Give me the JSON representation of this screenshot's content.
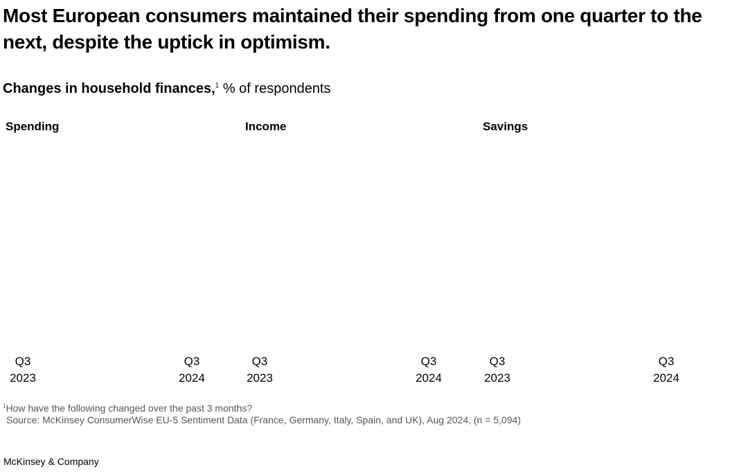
{
  "title": "Most European consumers maintained their spending from one quarter to the next, despite the uptick in optimism.",
  "subtitle": {
    "bold": "Changes in household finances,",
    "footnote_mark": "1",
    "rest": " % of respondents"
  },
  "chart_data": [
    {
      "type": "bar",
      "title": "Spending",
      "categories": [
        "Q3 2023",
        "Q3 2024"
      ],
      "tick_labels": [
        [
          "Q3",
          "2023"
        ],
        [
          "Q3",
          "2024"
        ]
      ],
      "series": []
    },
    {
      "type": "bar",
      "title": "Income",
      "categories": [
        "Q3 2023",
        "Q3 2024"
      ],
      "tick_labels": [
        [
          "Q3",
          "2023"
        ],
        [
          "Q3",
          "2024"
        ]
      ],
      "series": []
    },
    {
      "type": "bar",
      "title": "Savings",
      "categories": [
        "Q3 2023",
        "Q3 2024"
      ],
      "tick_labels": [
        [
          "Q3",
          "2023"
        ],
        [
          "Q3",
          "2024"
        ]
      ],
      "series": []
    }
  ],
  "footnote": {
    "mark": "1",
    "text": "How have the following changed over the past 3 months?"
  },
  "source": "Source: McKinsey ConsumerWise EU-5 Sentiment Data (France, Germany, Italy, Spain, and UK), Aug 2024, (n = 5,094)",
  "brand": "McKinsey & Company"
}
